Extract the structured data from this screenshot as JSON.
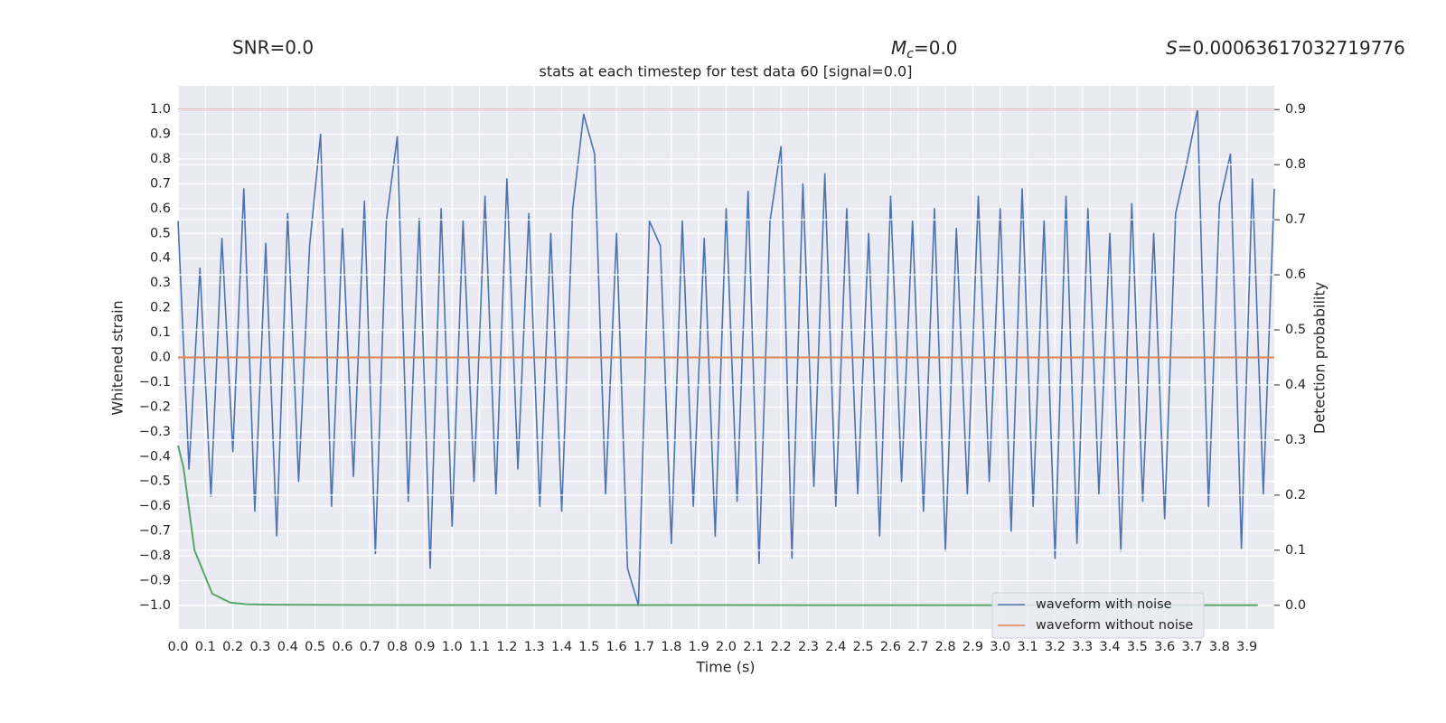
{
  "chart_data": {
    "type": "line",
    "title": "stats at each timestep for test data 60 [signal=0.0]",
    "annotations": [
      {
        "text": "SNR=0.0"
      },
      {
        "symbol": "M",
        "subscript": "c",
        "text": "=0.0"
      },
      {
        "symbol": "S",
        "text": "=0.00063617032719776"
      }
    ],
    "xlabel": "Time (s)",
    "ylabel": "Whitened strain",
    "y2label": "Detection probability",
    "xlim": [
      0,
      4.0
    ],
    "ylim": [
      -1.095,
      1.095
    ],
    "y2lim": [
      -0.043,
      0.943
    ],
    "xticks": [
      {
        "value": 0,
        "label": "0.0"
      },
      0.1,
      0.2,
      0.3,
      0.4,
      0.5,
      0.6,
      0.7,
      0.8,
      0.9,
      {
        "value": 1,
        "label": "1.0"
      },
      1.1,
      1.2,
      1.3,
      1.4,
      1.5,
      1.6,
      1.7,
      1.8,
      1.9,
      {
        "value": 2,
        "label": "2.0"
      },
      2.1,
      2.2,
      2.3,
      2.4,
      2.5,
      2.6,
      2.7,
      2.8,
      2.9,
      {
        "value": 3,
        "label": "3.0"
      },
      3.1,
      3.2,
      3.3,
      3.4,
      3.5,
      3.6,
      3.7,
      3.8,
      3.9
    ],
    "yticks": [
      {
        "value": 1,
        "label": "1.0"
      },
      0.9,
      0.8,
      0.7,
      0.6,
      0.5,
      0.4,
      0.3,
      0.2,
      0.1,
      {
        "value": 0,
        "label": "0.0"
      },
      {
        "value": -0.1,
        "label": "−0.1"
      },
      {
        "value": -0.2,
        "label": "−0.2"
      },
      {
        "value": -0.3,
        "label": "−0.3"
      },
      {
        "value": -0.4,
        "label": "−0.4"
      },
      {
        "value": -0.5,
        "label": "−0.5"
      },
      {
        "value": -0.6,
        "label": "−0.6"
      },
      {
        "value": -0.7,
        "label": "−0.7"
      },
      {
        "value": -0.8,
        "label": "−0.8"
      },
      {
        "value": -0.9,
        "label": "−0.9"
      },
      {
        "value": -1,
        "label": "−1.0"
      }
    ],
    "y2ticks": [
      0.9,
      0.8,
      0.7,
      0.6,
      0.5,
      0.4,
      0.3,
      0.2,
      0.1,
      {
        "value": 0,
        "label": "0.0"
      }
    ],
    "grid": true,
    "legend": "lower right",
    "series": [
      {
        "color": "#c44e52",
        "x": [
          0,
          4.0
        ],
        "values": [
          1.0,
          1.0
        ]
      },
      {
        "name": "waveform with noise",
        "color": "#4c72b0",
        "x": [
          0,
          0.04,
          0.08,
          0.12,
          0.16,
          0.2,
          0.24,
          0.28,
          0.32,
          0.36,
          0.4,
          0.44,
          0.48,
          0.52,
          0.56,
          0.6,
          0.64,
          0.68,
          0.72,
          0.76,
          0.8,
          0.84,
          0.88,
          0.92,
          0.96,
          1.0,
          1.04,
          1.08,
          1.12,
          1.16,
          1.2,
          1.24,
          1.28,
          1.32,
          1.36,
          1.4,
          1.44,
          1.48,
          1.52,
          1.56,
          1.6,
          1.64,
          1.68,
          1.72,
          1.76,
          1.8,
          1.84,
          1.88,
          1.92,
          1.96,
          2.0,
          2.04,
          2.08,
          2.12,
          2.16,
          2.2,
          2.24,
          2.28,
          2.32,
          2.36,
          2.4,
          2.44,
          2.48,
          2.52,
          2.56,
          2.6,
          2.64,
          2.68,
          2.72,
          2.76,
          2.8,
          2.84,
          2.88,
          2.92,
          2.96,
          3.0,
          3.04,
          3.08,
          3.12,
          3.16,
          3.2,
          3.24,
          3.28,
          3.32,
          3.36,
          3.4,
          3.44,
          3.48,
          3.52,
          3.56,
          3.6,
          3.64,
          3.68,
          3.72,
          3.76,
          3.8,
          3.84,
          3.88,
          3.92,
          3.96,
          4.0
        ],
        "values": [
          0.55,
          -0.45,
          0.36,
          -0.56,
          0.48,
          -0.38,
          0.68,
          -0.62,
          0.46,
          -0.72,
          0.58,
          -0.5,
          0.45,
          0.9,
          -0.6,
          0.52,
          -0.48,
          0.63,
          -0.79,
          0.55,
          0.89,
          -0.58,
          0.56,
          -0.85,
          0.6,
          -0.68,
          0.55,
          -0.5,
          0.65,
          -0.55,
          0.72,
          -0.45,
          0.58,
          -0.6,
          0.5,
          -0.62,
          0.6,
          0.98,
          0.82,
          -0.55,
          0.5,
          -0.85,
          -1.0,
          0.55,
          0.45,
          -0.75,
          0.55,
          -0.6,
          0.48,
          -0.72,
          0.6,
          -0.58,
          0.67,
          -0.83,
          0.55,
          0.85,
          -0.81,
          0.7,
          -0.52,
          0.74,
          -0.6,
          0.6,
          -0.55,
          0.5,
          -0.72,
          0.65,
          -0.5,
          0.55,
          -0.62,
          0.6,
          -0.78,
          0.52,
          -0.55,
          0.65,
          -0.5,
          0.6,
          -0.7,
          0.68,
          -0.6,
          0.55,
          -0.81,
          0.65,
          -0.75,
          0.6,
          -0.55,
          0.5,
          -0.78,
          0.62,
          -0.58,
          0.5,
          -0.65,
          0.58,
          0.78,
          1.0,
          -0.6,
          0.62,
          0.82,
          -0.77,
          0.72,
          -0.55,
          0.68
        ]
      },
      {
        "name": "waveform without noise",
        "color": "#dd8452",
        "x": [
          0,
          4.0
        ],
        "values": [
          0,
          0
        ]
      },
      {
        "color": "#55a868",
        "axis": "y2",
        "x": [
          0,
          0.02,
          0.06,
          0.125,
          0.19,
          0.25,
          0.35,
          0.5,
          1.0,
          2.0,
          3.0,
          3.94
        ],
        "values": [
          0.29,
          0.25,
          0.1,
          0.021,
          0.005,
          0.002,
          0.001,
          0.0008,
          0.0005,
          0.0004,
          0.0003,
          0.0003
        ]
      }
    ]
  }
}
